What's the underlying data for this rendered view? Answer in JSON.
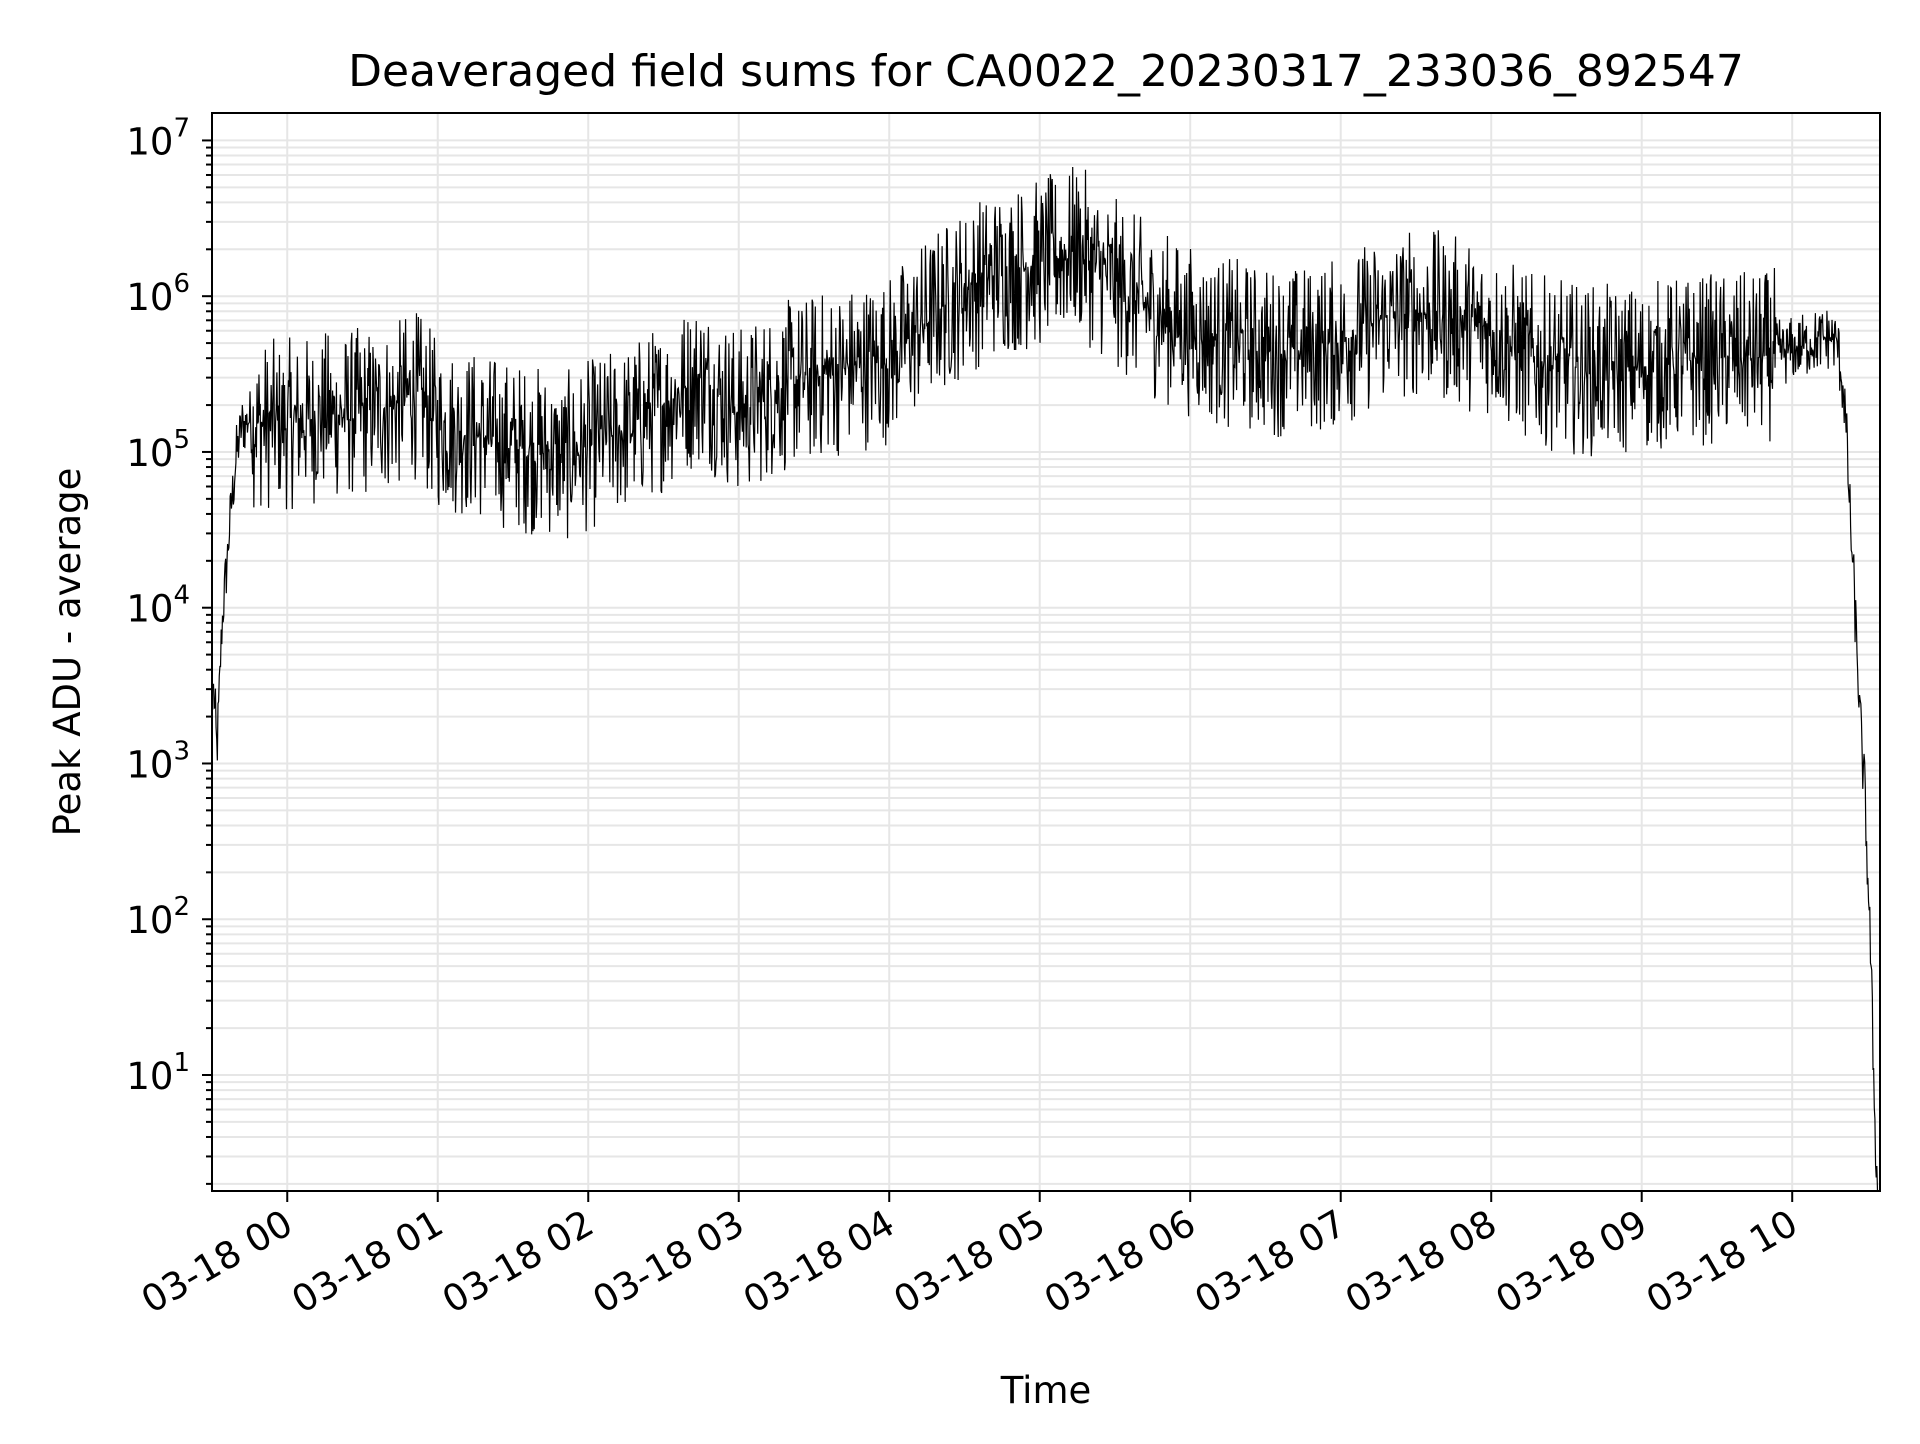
{
  "chart_data": {
    "type": "line",
    "title": "Deaveraged field sums for CA0022_20230317_233036_892547",
    "xlabel": "Time",
    "ylabel": "Peak ADU - average",
    "yscale": "log",
    "ylim": [
      1.8,
      15000000
    ],
    "xlim": [
      "2023-03-17 23:30:00",
      "2023-03-18 10:35:00"
    ],
    "x_ticks": [
      "03-18 00",
      "03-18 01",
      "03-18 02",
      "03-18 03",
      "03-18 04",
      "03-18 05",
      "03-18 06",
      "03-18 07",
      "03-18 08",
      "03-18 09",
      "03-18 10"
    ],
    "y_ticks": [
      {
        "value": 10,
        "base": "10",
        "exp": "1"
      },
      {
        "value": 100,
        "base": "10",
        "exp": "2"
      },
      {
        "value": 1000,
        "base": "10",
        "exp": "3"
      },
      {
        "value": 10000,
        "base": "10",
        "exp": "4"
      },
      {
        "value": 100000,
        "base": "10",
        "exp": "5"
      },
      {
        "value": 1000000,
        "base": "10",
        "exp": "6"
      },
      {
        "value": 10000000,
        "base": "10",
        "exp": "7"
      }
    ],
    "grid": true,
    "line_color": "#000000",
    "grid_color": "#e6e6e6",
    "series": [
      {
        "x": [
          "2023-03-17 23:30:36",
          "2023-03-17 23:32:00",
          "2023-03-17 23:34:00",
          "2023-03-17 23:36:00",
          "2023-03-17 23:38:00",
          "2023-03-17 23:40:00",
          "2023-03-17 23:42:00",
          "2023-03-17 23:45:00",
          "2023-03-17 23:50:00",
          "2023-03-17 23:55:00",
          "2023-03-18 00:00:00",
          "2023-03-18 00:15:00",
          "2023-03-18 00:30:00",
          "2023-03-18 00:45:00",
          "2023-03-18 00:50:00",
          "2023-03-18 01:00:00",
          "2023-03-18 01:15:00",
          "2023-03-18 01:30:00",
          "2023-03-18 01:45:00",
          "2023-03-18 01:50:00",
          "2023-03-18 02:00:00",
          "2023-03-18 02:15:00",
          "2023-03-18 02:30:00",
          "2023-03-18 02:45:00",
          "2023-03-18 03:00:00",
          "2023-03-18 03:15:00",
          "2023-03-18 03:30:00",
          "2023-03-18 03:45:00",
          "2023-03-18 04:00:00",
          "2023-03-18 04:15:00",
          "2023-03-18 04:30:00",
          "2023-03-18 04:45:00",
          "2023-03-18 05:00:00",
          "2023-03-18 05:15:00",
          "2023-03-18 05:30:00",
          "2023-03-18 05:45:00",
          "2023-03-18 06:00:00",
          "2023-03-18 06:15:00",
          "2023-03-18 06:30:00",
          "2023-03-18 06:45:00",
          "2023-03-18 07:00:00",
          "2023-03-18 07:15:00",
          "2023-03-18 07:30:00",
          "2023-03-18 07:45:00",
          "2023-03-18 08:00:00",
          "2023-03-18 08:15:00",
          "2023-03-18 08:30:00",
          "2023-03-18 08:45:00",
          "2023-03-18 09:00:00",
          "2023-03-18 09:15:00",
          "2023-03-18 09:30:00",
          "2023-03-18 09:45:00",
          "2023-03-18 10:00:00",
          "2023-03-18 10:15:00",
          "2023-03-18 10:18:00",
          "2023-03-18 10:21:00",
          "2023-03-18 10:23:00",
          "2023-03-18 10:25:00",
          "2023-03-18 10:27:00",
          "2023-03-18 10:29:00",
          "2023-03-18 10:31:00",
          "2023-03-18 10:33:00",
          "2023-03-18 10:34:00"
        ],
        "y": [
          3000,
          1200,
          8000,
          20000,
          50000,
          100000,
          150000,
          160000,
          150000,
          150000,
          150000,
          170000,
          180000,
          200000,
          250000,
          150000,
          130000,
          110000,
          100000,
          90000,
          110000,
          140000,
          200000,
          300000,
          180000,
          250000,
          300000,
          350000,
          400000,
          700000,
          1100000,
          1500000,
          1600000,
          2000000,
          1200000,
          800000,
          600000,
          500000,
          450000,
          450000,
          500000,
          700000,
          800000,
          700000,
          600000,
          400000,
          350000,
          330000,
          350000,
          380000,
          400000,
          400000,
          450000,
          550000,
          500000,
          200000,
          40000,
          10000,
          2000,
          600,
          80,
          5,
          1.8
        ],
        "noise_amplitude_decades": 0.35
      }
    ]
  }
}
